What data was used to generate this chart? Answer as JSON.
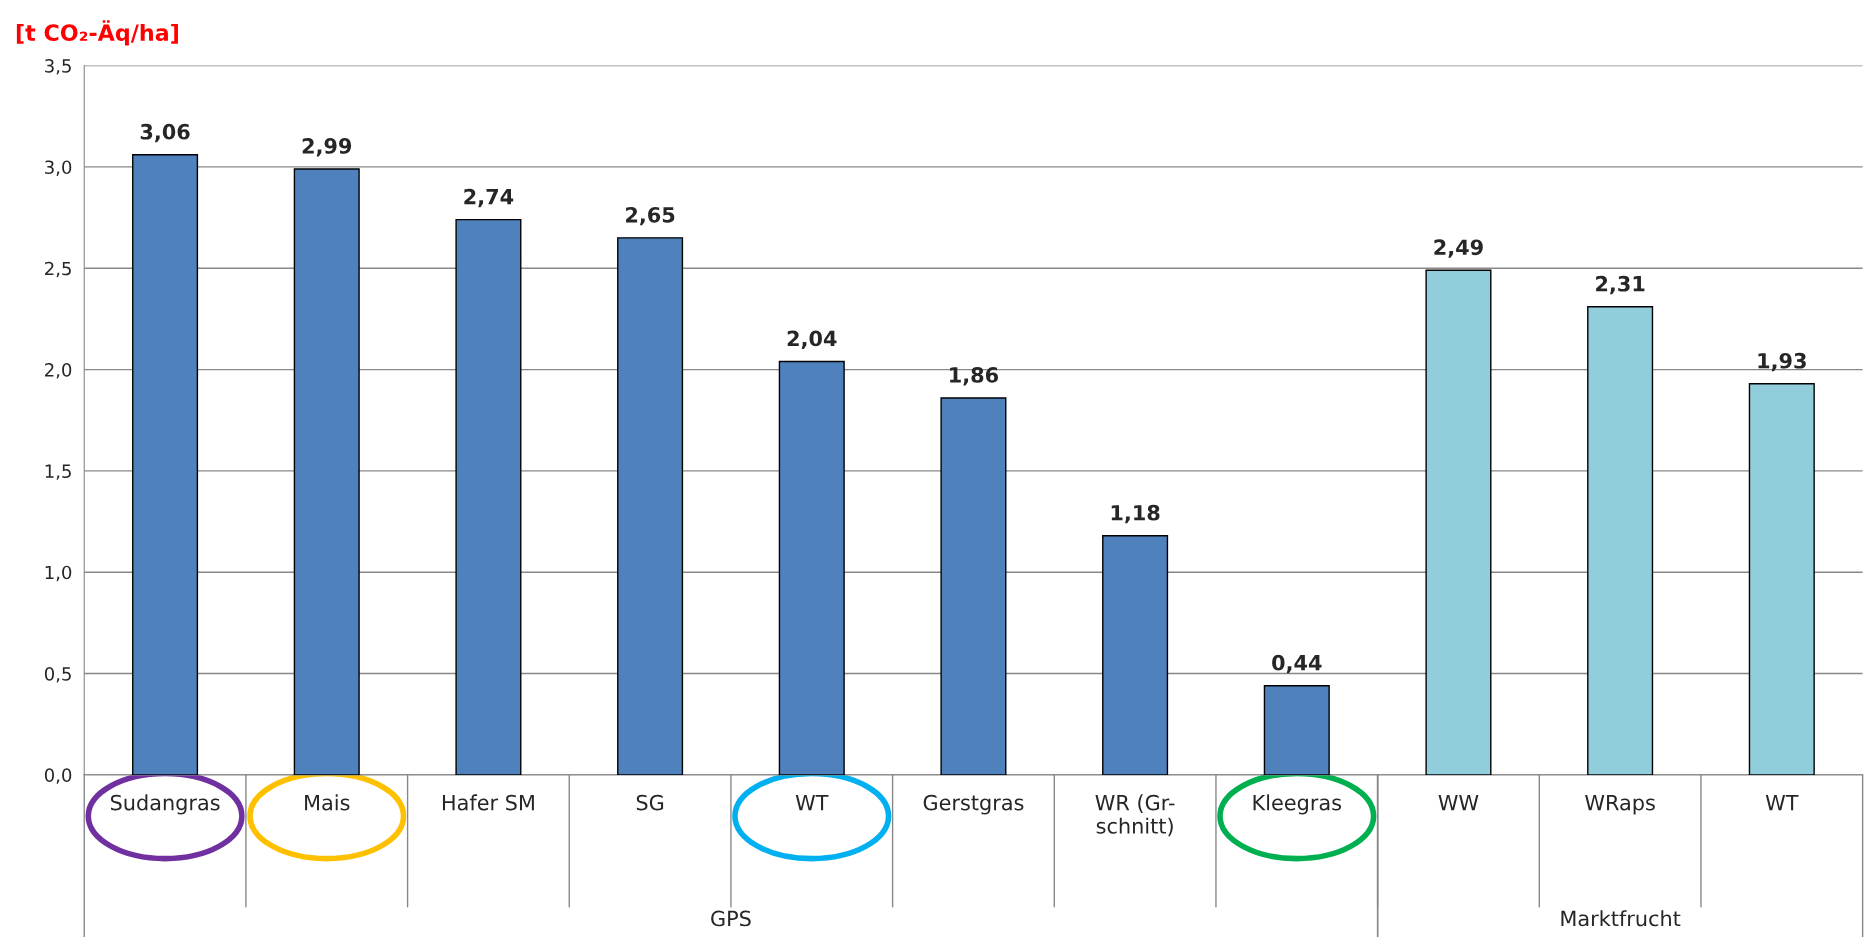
{
  "chart_data": {
    "type": "bar",
    "ylabel": "[t CO₂-Äq/ha]",
    "categories": [
      "Sudangras",
      "Mais",
      "Hafer SM",
      "SG",
      "WT",
      "Gerstgras",
      "WR (Gr-\nschnitt)",
      "Kleegras",
      "WW",
      "WRaps",
      "WT"
    ],
    "values": [
      3.06,
      2.99,
      2.74,
      2.65,
      2.04,
      1.86,
      1.18,
      0.44,
      2.49,
      2.31,
      1.93
    ],
    "value_labels": [
      "3,06",
      "2,99",
      "2,74",
      "2,65",
      "2,04",
      "1,86",
      "1,18",
      "0,44",
      "2,49",
      "2,31",
      "1,93"
    ],
    "colors": [
      "#4f81bd",
      "#4f81bd",
      "#4f81bd",
      "#4f81bd",
      "#4f81bd",
      "#4f81bd",
      "#4f81bd",
      "#4f81bd",
      "#92cddc",
      "#92cddc",
      "#92cddc"
    ],
    "ylim": [
      0,
      3.5
    ],
    "yticks": [
      {
        "value": 0,
        "label": "0,0"
      },
      {
        "value": 0.5,
        "label": "0,5"
      },
      {
        "value": 1.0,
        "label": "1,0"
      },
      {
        "value": 1.5,
        "label": "1,5"
      },
      {
        "value": 2.0,
        "label": "2,0"
      },
      {
        "value": 2.5,
        "label": "2,5"
      },
      {
        "value": 3.0,
        "label": "3,0"
      },
      {
        "value": 3.5,
        "label": "3,5"
      }
    ],
    "grid": "y",
    "annotations": [
      "GPS",
      "Marktfrucht"
    ]
  }
}
